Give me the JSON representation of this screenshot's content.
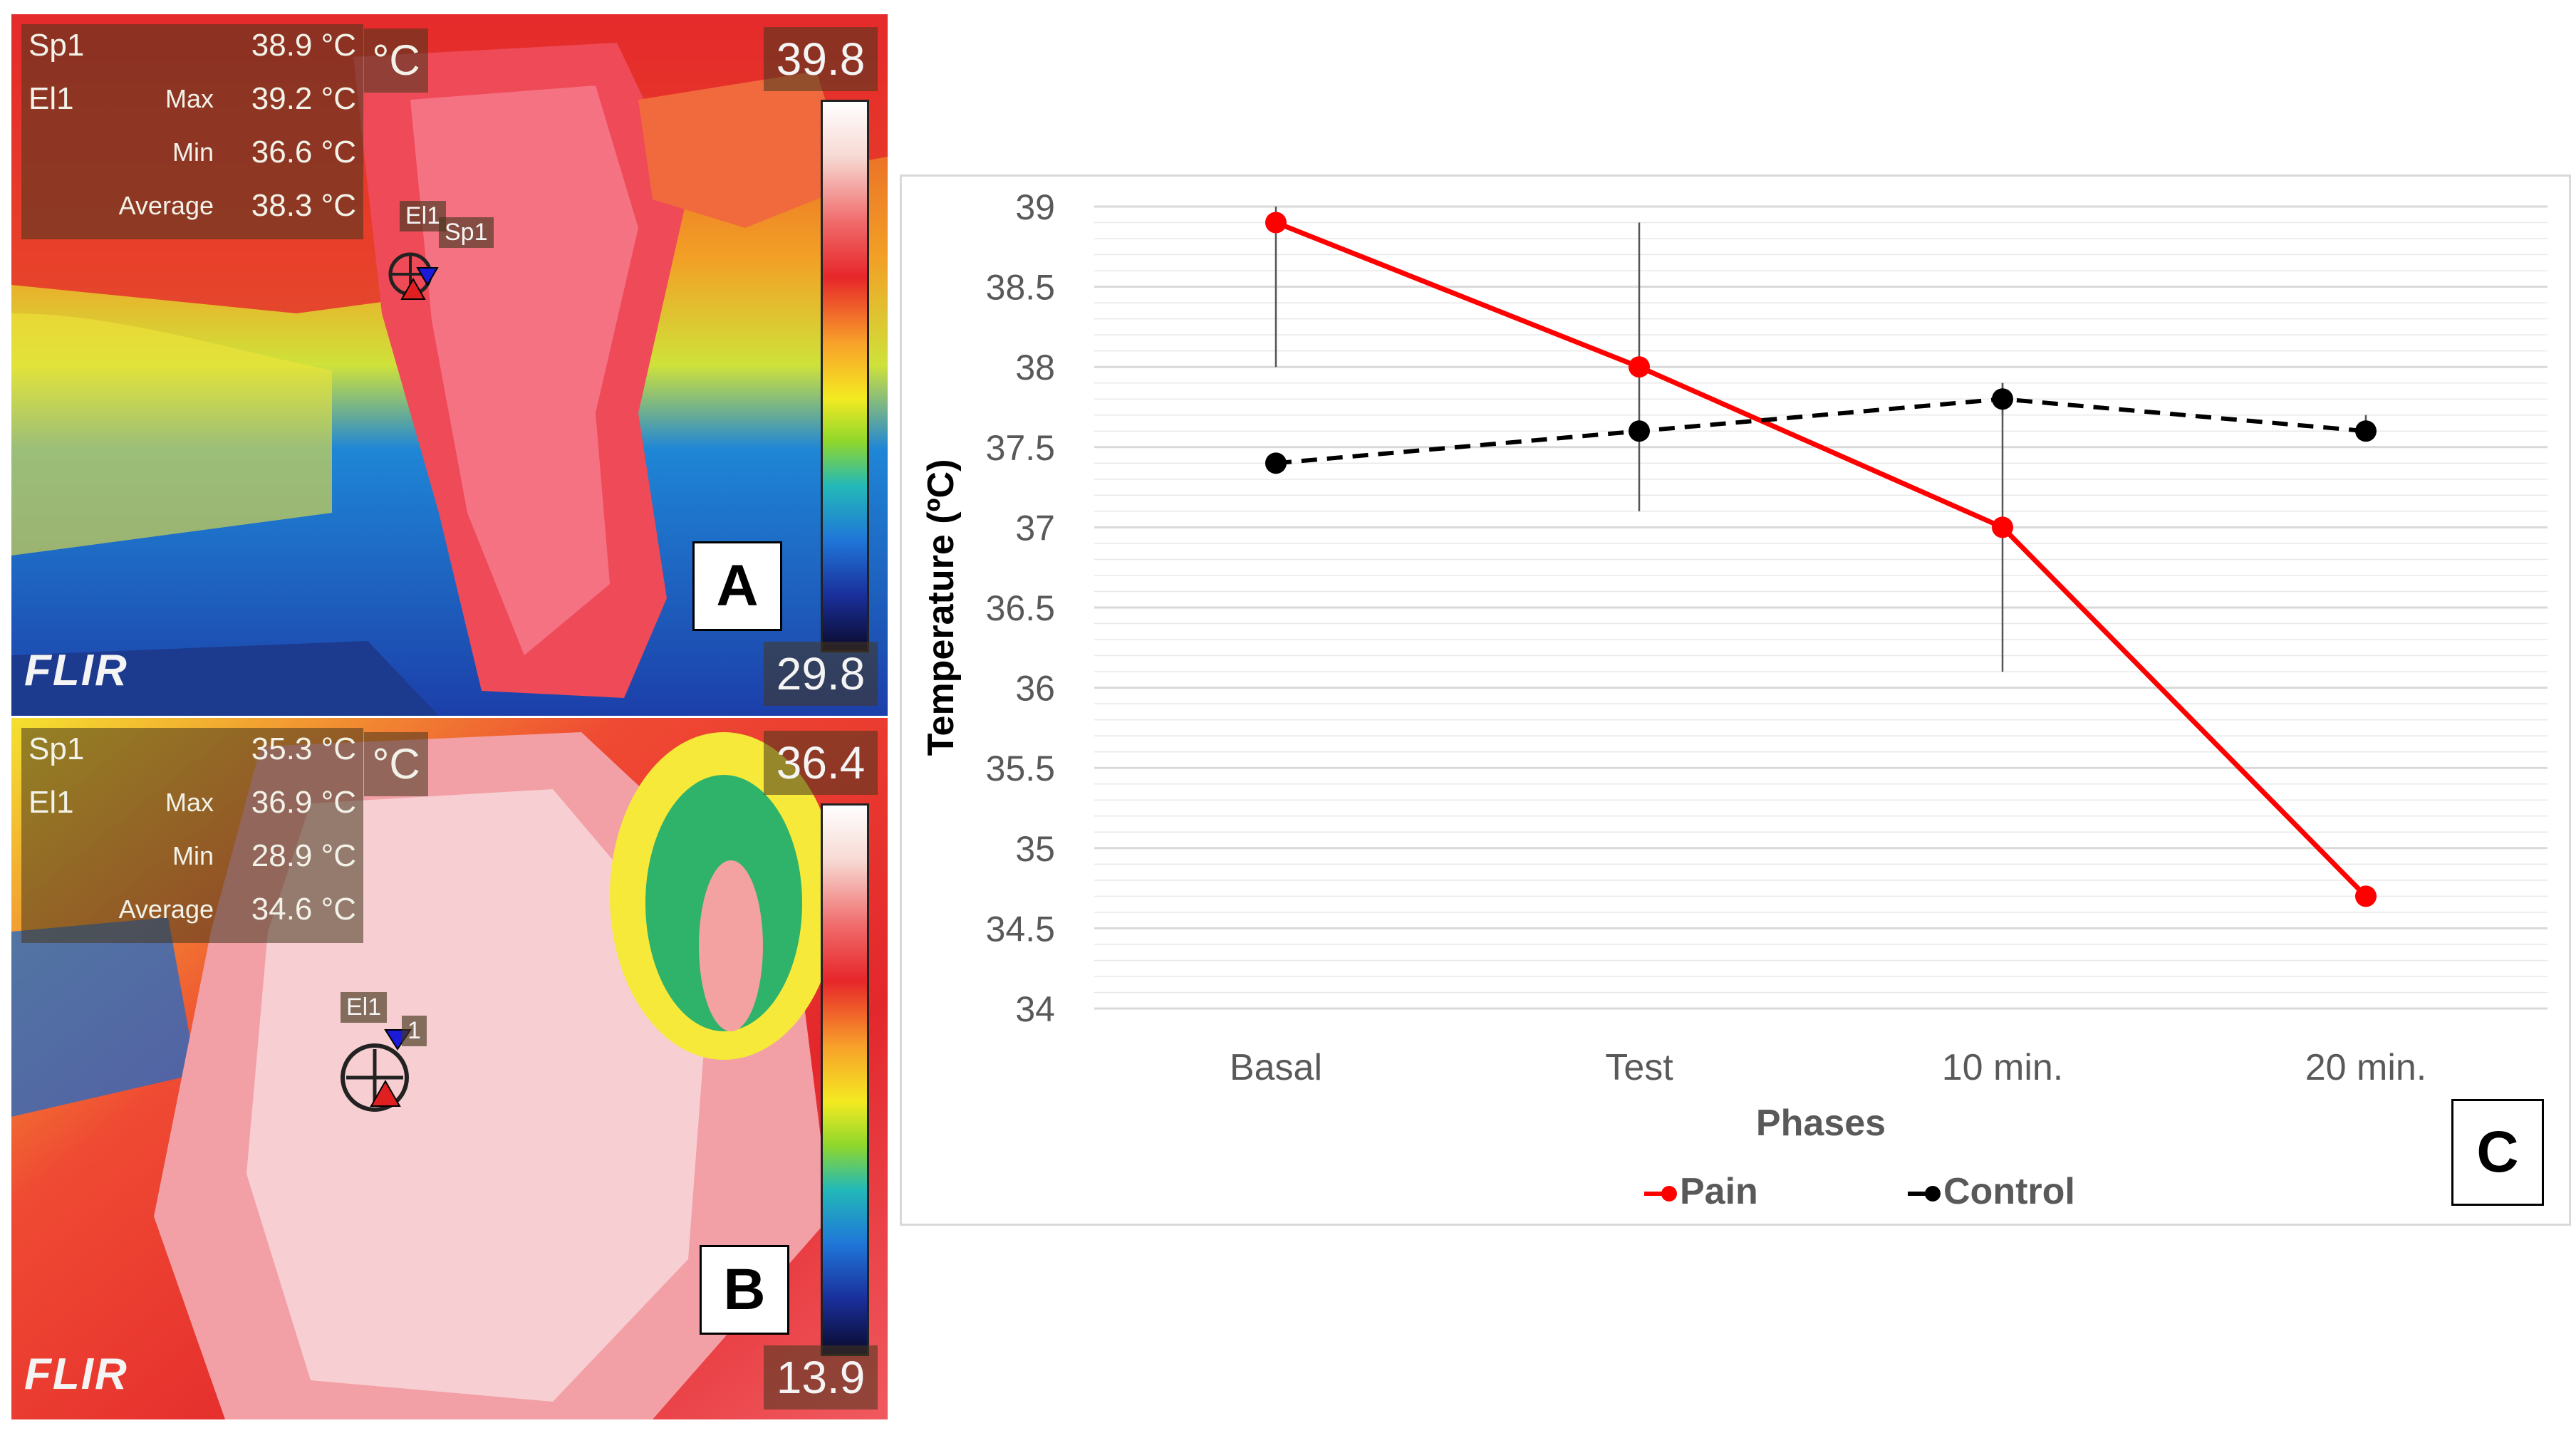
{
  "panel_a": {
    "label": "A",
    "sp1_label": "Sp1",
    "sp1_value": "38.9 °C",
    "el1_label": "El1",
    "max_label": "Max",
    "max_value": "39.2 °C",
    "min_label": "Min",
    "min_value": "36.6 °C",
    "avg_label": "Average",
    "avg_value": "38.3 °C",
    "unit": "°C",
    "scale_max": "39.8",
    "scale_min": "29.8",
    "logo": "FLIR",
    "tag_el1": "El1",
    "tag_sp1": "Sp1"
  },
  "panel_b": {
    "label": "B",
    "sp1_label": "Sp1",
    "sp1_value": "35.3 °C",
    "el1_label": "El1",
    "max_label": "Max",
    "max_value": "36.9 °C",
    "min_label": "Min",
    "min_value": "28.9 °C",
    "avg_label": "Average",
    "avg_value": "34.6 °C",
    "unit": "°C",
    "scale_max": "36.4",
    "scale_min": "13.9",
    "logo": "FLIR",
    "tag_el1": "El1",
    "tag_sp1": "1"
  },
  "panel_c": {
    "label": "C"
  },
  "colors": {
    "pain": "#ff0000",
    "control": "#000000",
    "grid": "#d9d9d9",
    "axis_text": "#595959"
  },
  "chart_data": {
    "type": "line",
    "title": "",
    "xlabel": "Phases",
    "ylabel": "Temperature (ºC)",
    "categories": [
      "Basal",
      "Test",
      "10 min.",
      "20 min."
    ],
    "ylim": [
      34,
      39
    ],
    "yticks": [
      "34",
      "34.5",
      "35",
      "35.5",
      "36",
      "36.5",
      "37",
      "37.5",
      "38",
      "38.5",
      "39"
    ],
    "legend_position": "bottom",
    "series": [
      {
        "name": "Pain",
        "color": "#ff0000",
        "dash": "solid",
        "values": [
          38.9,
          38.0,
          37.0,
          34.7
        ],
        "err_low": [
          38.0,
          37.1,
          36.1,
          null
        ],
        "err_high": [
          39.0,
          38.9,
          37.9,
          null
        ]
      },
      {
        "name": "Control",
        "color": "#000000",
        "dash": "dashed",
        "values": [
          37.4,
          37.6,
          37.8,
          37.6
        ],
        "err_low": [
          37.35,
          null,
          37.7,
          37.55
        ],
        "err_high": [
          37.45,
          null,
          37.9,
          37.7
        ]
      }
    ]
  }
}
